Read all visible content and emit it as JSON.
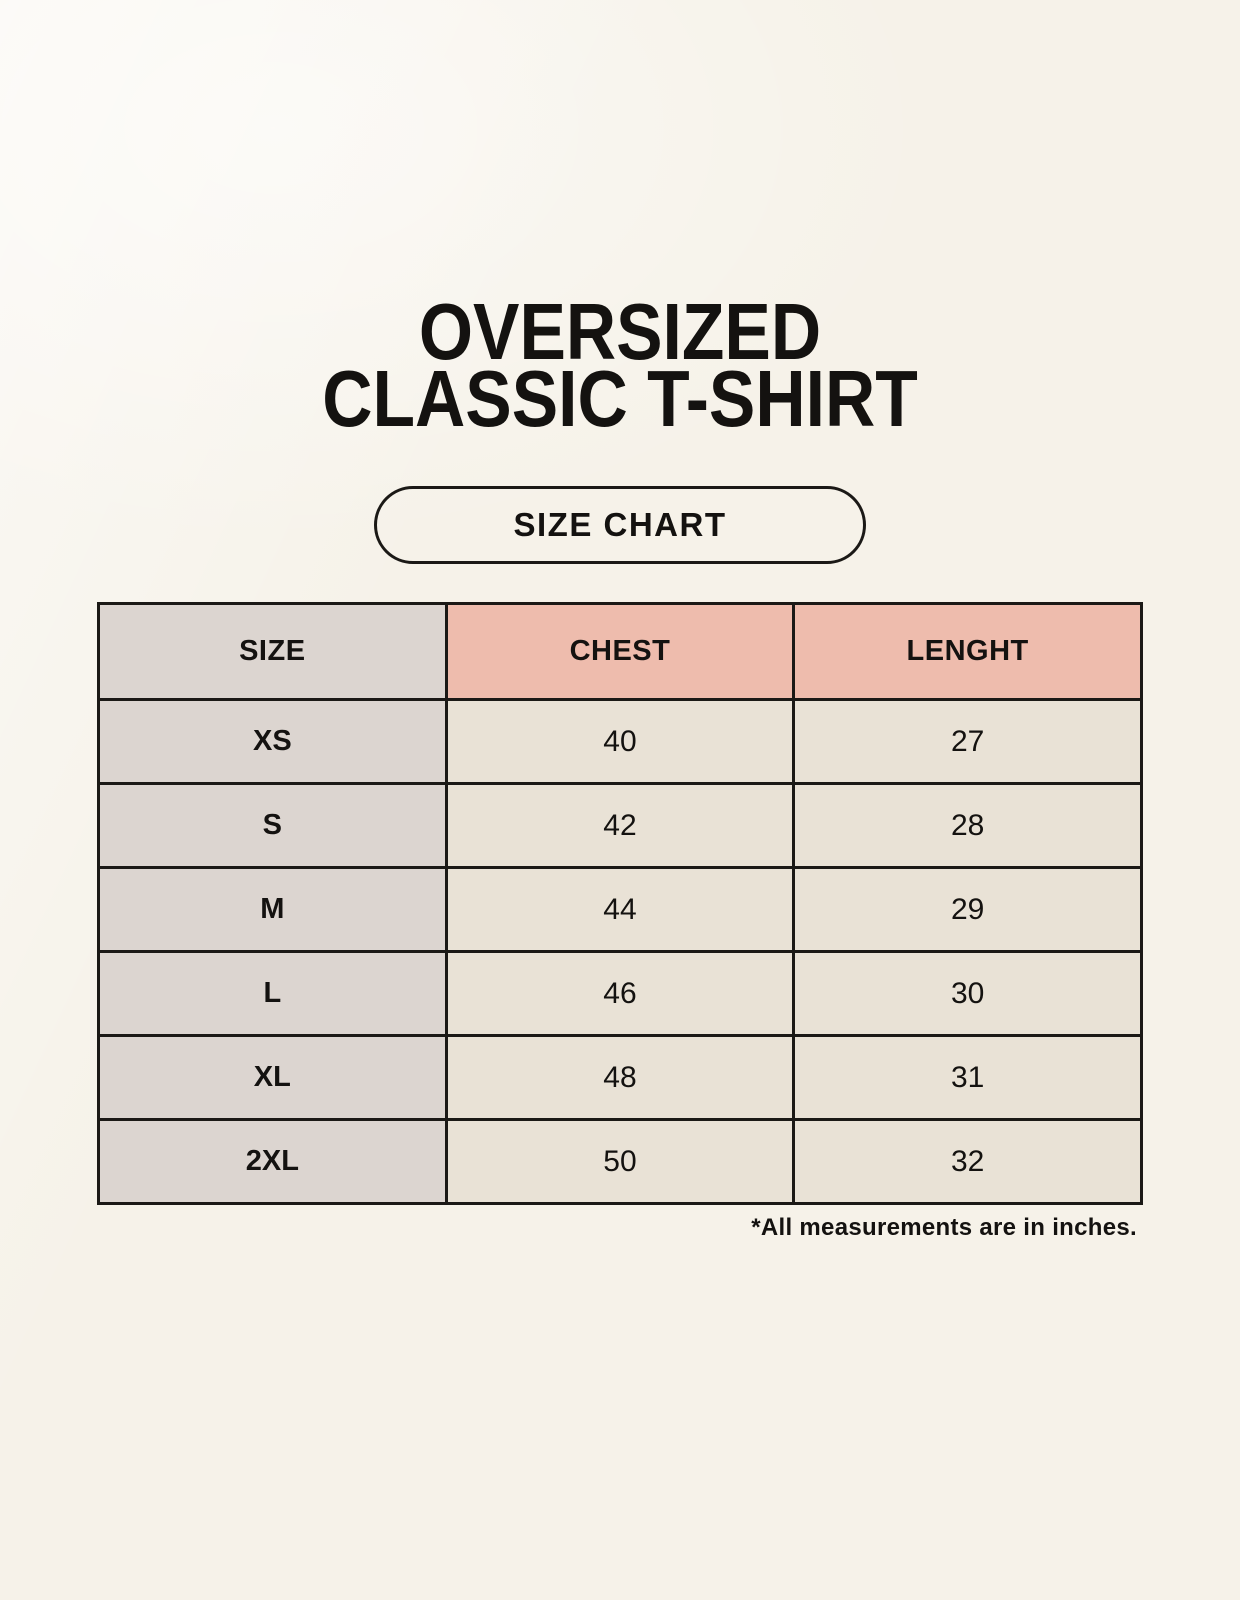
{
  "header": {
    "title_line1": "OVERSIZED",
    "title_line2": "CLASSIC T-SHIRT",
    "size_chart_label": "SIZE CHART"
  },
  "chart_data": {
    "type": "table",
    "title": "OVERSIZED CLASSIC T-SHIRT",
    "subtitle": "SIZE CHART",
    "columns": [
      "SIZE",
      "CHEST",
      "LENGHT"
    ],
    "rows": [
      [
        "XS",
        "40",
        "27"
      ],
      [
        "S",
        "42",
        "28"
      ],
      [
        "M",
        "44",
        "29"
      ],
      [
        "L",
        "46",
        "30"
      ],
      [
        "XL",
        "48",
        "31"
      ],
      [
        "2XL",
        "50",
        "32"
      ]
    ],
    "units_note": "*All measurements are in inches."
  },
  "footnote": "*All measurements are in inches.",
  "colors": {
    "page-bg": "#f6f2e9",
    "header-pink": "#eebcad",
    "col-gray": "#dcd5d0",
    "cell-cream": "#e9e2d6",
    "border-black": "#1b1916",
    "text-black": "#141210"
  }
}
